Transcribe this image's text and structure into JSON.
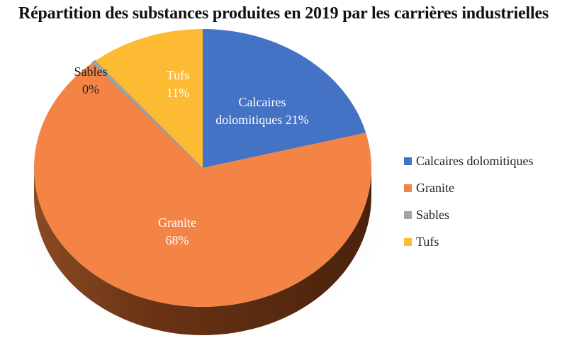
{
  "chart_data": {
    "type": "pie",
    "title": "Répartition des substances produites en 2019 par les carrières industrielles",
    "legend_position": "right",
    "slices": [
      {
        "name": "Calcaires dolomitiques",
        "value": 21,
        "color": "#4472C4",
        "label_lines": [
          "Calcaires",
          "dolomitiques 21%"
        ]
      },
      {
        "name": "Granite",
        "value": 68,
        "color": "#F38445",
        "label_lines": [
          "Granite",
          "68%"
        ]
      },
      {
        "name": "Sables",
        "value": 0.4,
        "color": "#A5A5A5",
        "label_lines": [
          "Sables",
          "0%"
        ]
      },
      {
        "name": "Tufs",
        "value": 11,
        "color": "#FDBB33",
        "label_lines": [
          "Tufs",
          "11%"
        ]
      }
    ]
  }
}
